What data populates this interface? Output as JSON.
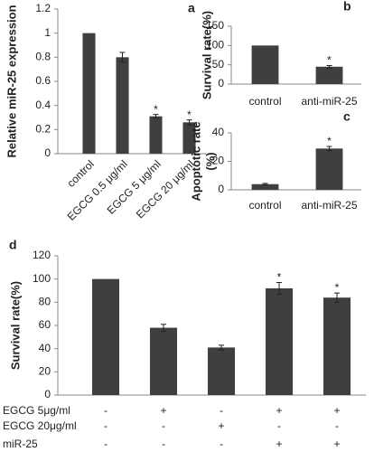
{
  "chart_data": [
    {
      "type": "bar",
      "label": "a",
      "ylabel": [
        "Relative miR-25 expression"
      ],
      "categories": [
        "control",
        "EGCG 0.5 μg/ml",
        "EGCG 5 μg/ml",
        "EGCG 20 μg/ml"
      ],
      "values": [
        1.0,
        0.8,
        0.31,
        0.26
      ],
      "errors": [
        null,
        0.04,
        0.015,
        0.02
      ],
      "marks": [
        null,
        null,
        "*",
        "*"
      ],
      "color": "#3f3f3f",
      "x_label_rotation": -45,
      "ylim": [
        0,
        1.2
      ],
      "yticks": [
        0,
        0.2,
        0.4,
        0.6,
        0.8,
        1,
        1.2
      ]
    },
    {
      "type": "bar",
      "label": "b",
      "ylabel": [
        "Survival rate(%)"
      ],
      "categories": [
        "control",
        "anti-miR-25"
      ],
      "values": [
        100,
        45
      ],
      "errors": [
        null,
        3
      ],
      "marks": [
        null,
        "*"
      ],
      "color": "#3f3f3f",
      "ylim": [
        0,
        150
      ],
      "yticks": [
        0,
        50,
        100,
        150
      ]
    },
    {
      "type": "bar",
      "label": "c",
      "ylabel": [
        "Apoptotic rate",
        "(%)"
      ],
      "categories": [
        "control",
        "anti-miR-25"
      ],
      "values": [
        4,
        29
      ],
      "errors": [
        0.5,
        1.5
      ],
      "marks": [
        null,
        "*"
      ],
      "color": "#3f3f3f",
      "ylim": [
        0,
        40
      ],
      "yticks": [
        0,
        20,
        40
      ]
    },
    {
      "type": "bar",
      "label": "d",
      "ylabel": [
        "Survival rate(%)"
      ],
      "values": [
        100,
        58,
        41,
        92,
        84
      ],
      "errors": [
        null,
        3,
        2,
        5,
        4
      ],
      "marks": [
        null,
        null,
        null,
        "*",
        "*"
      ],
      "color": "#3f3f3f",
      "ylim": [
        0,
        120
      ],
      "yticks": [
        0,
        20,
        40,
        60,
        80,
        100,
        120
      ],
      "conditions": [
        {
          "name": "EGCG 5μg/ml",
          "signs": [
            "-",
            "+",
            "-",
            "+",
            "+"
          ]
        },
        {
          "name": "EGCG 20μg/ml",
          "signs": [
            "-",
            "-",
            "+",
            "-",
            "-"
          ]
        },
        {
          "name": "miR-25",
          "signs": [
            "-",
            "-",
            "-",
            "+",
            "+"
          ]
        }
      ]
    }
  ]
}
